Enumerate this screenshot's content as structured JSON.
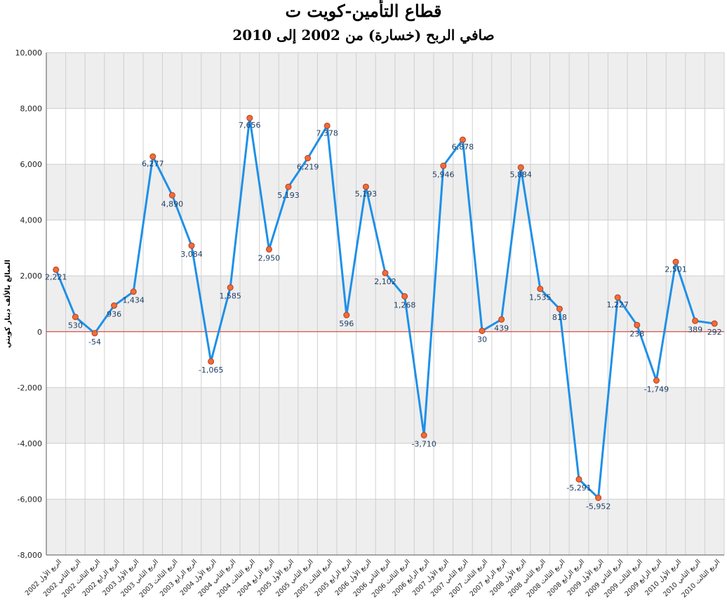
{
  "chart_data": {
    "type": "line",
    "title": "قطاع التأمين-كويت ت",
    "subtitle": "صافي الربح (خسارة) من 2002 إلى 2010",
    "ylabel": "المبالغ بالألف دينار كويتي",
    "xlabel": "",
    "ylim": [
      -8000,
      10000
    ],
    "yticks": [
      -8000,
      -6000,
      -4000,
      -2000,
      0,
      2000,
      4000,
      6000,
      8000,
      10000
    ],
    "ytick_labels": [
      "-8,000",
      "-6,000",
      "-4,000",
      "-2,000",
      "0",
      "2,000",
      "4,000",
      "6,000",
      "8,000",
      "10,000"
    ],
    "grid": true,
    "categories": [
      "الربع الأول 2002",
      "الربع الثاني 2002",
      "الربع الثالث 2002",
      "الربع الرابع 2002",
      "الربع الأول 2003",
      "الربع الثاني 2003",
      "الربع الثالث 2003",
      "الربع الرابع 2003",
      "الربع الأول 2004",
      "الربع الثاني 2004",
      "الربع الثالث 2004",
      "الربع الرابع 2004",
      "الربع الأول 2005",
      "الربع الثاني 2005",
      "الربع الثالث 2005",
      "الربع الرابع 2005",
      "الربع الأول 2006",
      "الربع الثاني 2006",
      "الربع الثالث 2006",
      "الربع الرابع 2006",
      "الربع الأول 2007",
      "الربع الثاني 2007",
      "الربع الثالث 2007",
      "الربع الرابع 2007",
      "الربع الأول 2008",
      "الربع الثاني 2008",
      "الربع الثالث 2008",
      "الربع الرابع 2008",
      "الربع الأول 2009",
      "الربع الثاني 2009",
      "الربع الثالث 2009",
      "الربع الرابع 2009",
      "الربع الأول 2010",
      "الربع الثاني 2010",
      "الربع الثالث 2010"
    ],
    "series": [
      {
        "values": [
          2221,
          530,
          -54,
          936,
          1434,
          6277,
          4890,
          3084,
          -1065,
          1585,
          7656,
          2950,
          5193,
          6219,
          7378,
          596,
          5193,
          2102,
          1268,
          -3710,
          5946,
          6878,
          30,
          439,
          5884,
          1535,
          818,
          -5291,
          -5952,
          1227,
          238,
          -1749,
          2501,
          389,
          292
        ],
        "labels": [
          "2,221",
          "530",
          "-54",
          "936",
          "1,434",
          "6,277",
          "4,890",
          "3,084",
          "-1,065",
          "1,585",
          "7,656",
          "2,950",
          "5,193",
          "6,219",
          "7,378",
          "596",
          "5,193",
          "2,102",
          "1,268",
          "-3,710",
          "5,946",
          "6,878",
          "30",
          "439",
          "5,884",
          "1,535",
          "818",
          "-5,291",
          "-5,952",
          "1,227",
          "238",
          "-1,749",
          "2,501",
          "389",
          "292"
        ]
      }
    ],
    "colors": {
      "line": "#1e90e8",
      "marker": "#f26b3a",
      "marker_stroke": "#b5401a",
      "zero_line": "#e03020",
      "band": "#eeeeee",
      "label": "#1f3f66"
    }
  }
}
